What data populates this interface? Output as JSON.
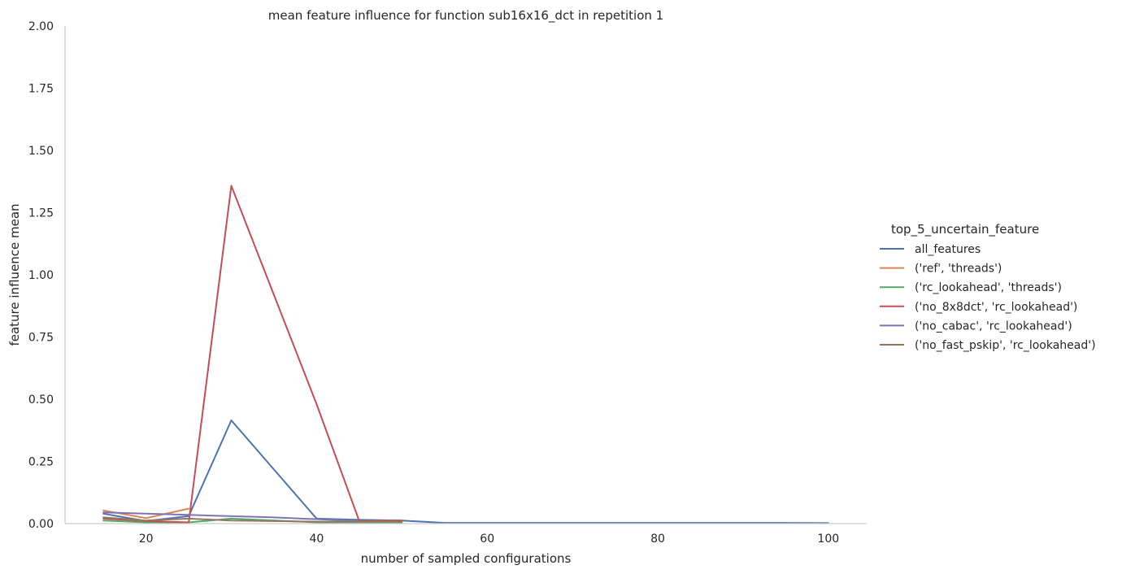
{
  "chart_data": {
    "type": "line",
    "title": "mean feature influence for function sub16x16_dct in repetition 1",
    "xlabel": "number of sampled configurations",
    "ylabel": "feature influence mean",
    "xlim": [
      10.5,
      104.5
    ],
    "ylim": [
      0,
      2.0
    ],
    "xticks": [
      20,
      40,
      60,
      80,
      100
    ],
    "xtick_labels": [
      "20",
      "40",
      "60",
      "80",
      "100"
    ],
    "yticks": [
      0,
      0.25,
      0.5,
      0.75,
      1.0,
      1.25,
      1.5,
      1.75,
      2.0
    ],
    "ytick_labels": [
      "0.00",
      "0.25",
      "0.50",
      "0.75",
      "1.00",
      "1.25",
      "1.50",
      "1.75",
      "2.00"
    ],
    "grid": false,
    "legend_title": "top_5_uncertain_feature",
    "legend_position": "right",
    "series": [
      {
        "name": "all_features",
        "color": "#4c72b0",
        "x": [
          15,
          20,
          25,
          30,
          40,
          45,
          50,
          55,
          60,
          65,
          70,
          75,
          80,
          85,
          90,
          95,
          100
        ],
        "y": [
          0.04,
          0.01,
          0.03,
          0.415,
          0.02,
          0.015,
          0.012,
          0.003,
          0.003,
          0.003,
          0.003,
          0.003,
          0.003,
          0.003,
          0.003,
          0.003,
          0.002
        ]
      },
      {
        "name": "('ref', 'threads')",
        "color": "#dd8452",
        "x": [
          15,
          20,
          25
        ],
        "y": [
          0.053,
          0.022,
          0.06
        ]
      },
      {
        "name": "('rc_lookahead', 'threads')",
        "color": "#55a868",
        "x": [
          15,
          20,
          25,
          30,
          40,
          50
        ],
        "y": [
          0.012,
          0.005,
          0.005,
          0.02,
          0.005,
          0.004
        ]
      },
      {
        "name": "('no_8x8dct', 'rc_lookahead')",
        "color": "#c44e52",
        "x": [
          15,
          20,
          25,
          30,
          40,
          45,
          50
        ],
        "y": [
          0.02,
          0.01,
          0.005,
          1.358,
          0.48,
          0.01,
          0.012
        ]
      },
      {
        "name": "('no_cabac', 'rc_lookahead')",
        "color": "#8172b3",
        "x": [
          15,
          25,
          35,
          45
        ],
        "y": [
          0.045,
          0.035,
          0.025,
          0.01
        ]
      },
      {
        "name": "('no_fast_pskip', 'rc_lookahead')",
        "color": "#937860",
        "x": [
          15,
          20,
          25,
          30,
          40,
          50
        ],
        "y": [
          0.025,
          0.012,
          0.02,
          0.012,
          0.008,
          0.008
        ]
      }
    ]
  }
}
